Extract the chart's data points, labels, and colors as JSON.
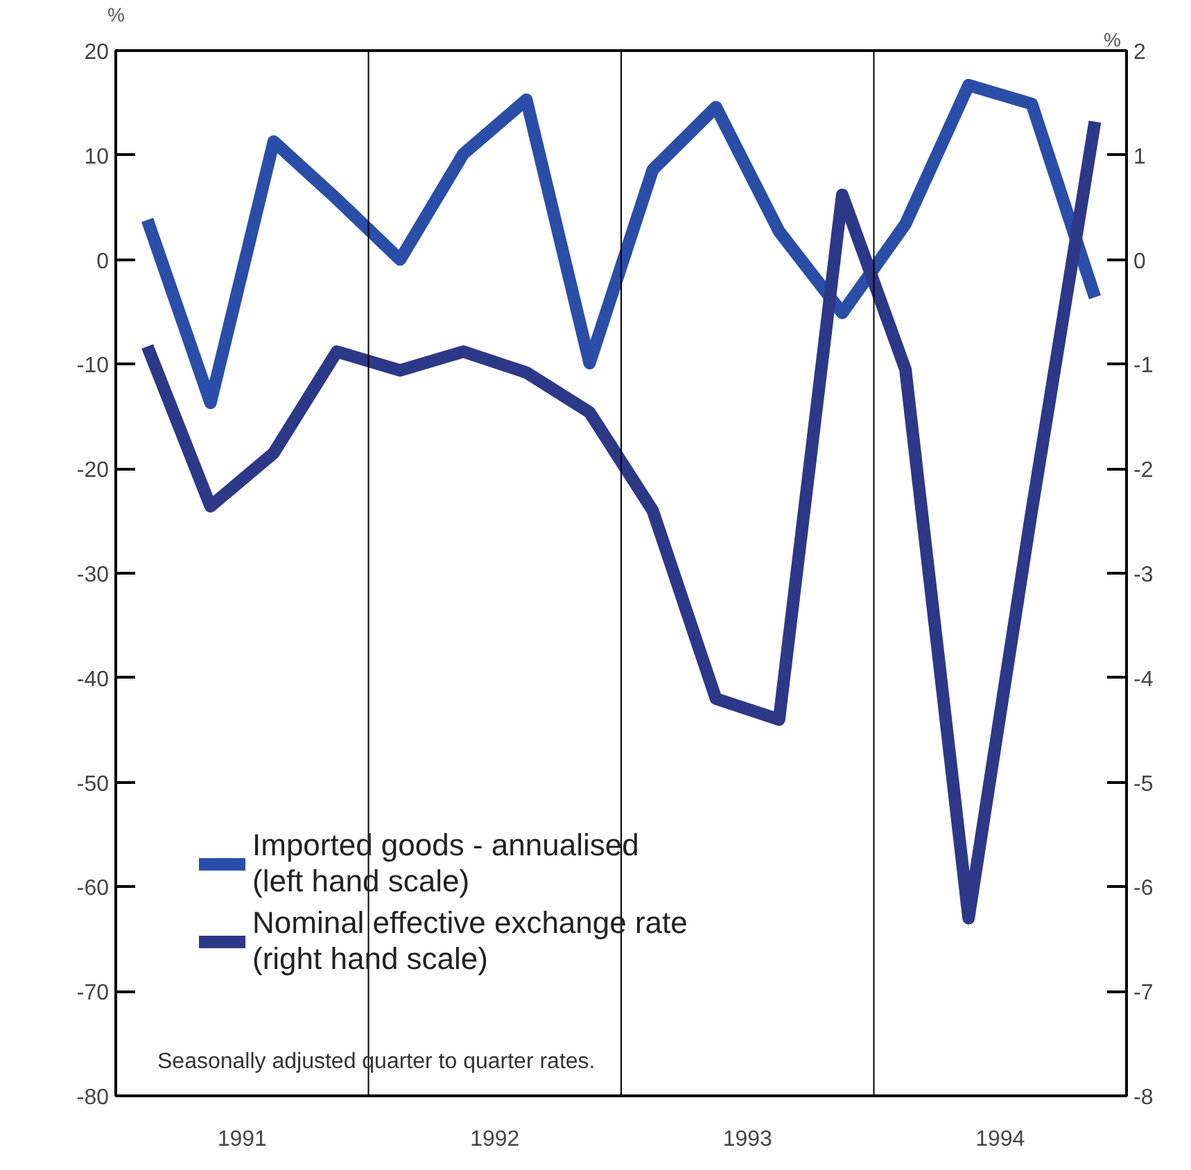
{
  "chart_data": {
    "type": "line",
    "x": [
      1991.125,
      1991.375,
      1991.625,
      1991.875,
      1992.125,
      1992.375,
      1992.625,
      1992.875,
      1993.125,
      1993.375,
      1993.625,
      1993.875,
      1994.125,
      1994.375,
      1994.625,
      1994.875
    ],
    "series": [
      {
        "name": "Imported goods - annualised\n(left hand scale)",
        "color": "#2a4ea8",
        "values": [
          3.8,
          -13.7,
          11.3,
          5.8,
          0,
          10.1,
          15.3,
          -9.9,
          8.6,
          14.6,
          2.7,
          -5.1,
          3.4,
          16.7,
          14.9,
          -3.6
        ]
      },
      {
        "name": "Nominal effective exchange rate\n(right hand scale)",
        "color": "#2e3888",
        "axis": "y2",
        "values": [
          -0.83,
          -2.36,
          -1.85,
          -0.88,
          -1.06,
          -0.88,
          -1.08,
          -1.46,
          -2.4,
          -4.2,
          -4.4,
          0.62,
          -1.05,
          -6.3,
          -2.4,
          1.32
        ]
      }
    ],
    "xlim": [
      1991,
      1995
    ],
    "xticks": [
      {
        "value": 1991.5,
        "label": "1991"
      },
      {
        "value": 1992.5,
        "label": "1992"
      },
      {
        "value": 1993.5,
        "label": "1993"
      },
      {
        "value": 1994.5,
        "label": "1994"
      }
    ],
    "ylim": [
      -80,
      20
    ],
    "yticks": [
      -80,
      -70,
      -60,
      -50,
      -40,
      -30,
      -20,
      -10,
      0,
      10,
      20
    ],
    "y2lim": [
      -8,
      2
    ],
    "y2ticks": [
      -8,
      -7,
      -6,
      -5,
      -4,
      -3,
      -2,
      -1,
      0,
      1,
      2
    ],
    "ylabel": "%",
    "y2label": "%",
    "ref_lines": [
      {
        "axis": "x",
        "value": 1992,
        "color": "#000000"
      },
      {
        "axis": "x",
        "value": 1993,
        "color": "#000000"
      },
      {
        "axis": "x",
        "value": 1994,
        "color": "#000000"
      }
    ],
    "annotations": [
      "Seasonally adjusted quarter to quarter rates."
    ],
    "grid": false,
    "legend": "bottom left",
    "marker": "none",
    "line_style": "solid"
  }
}
